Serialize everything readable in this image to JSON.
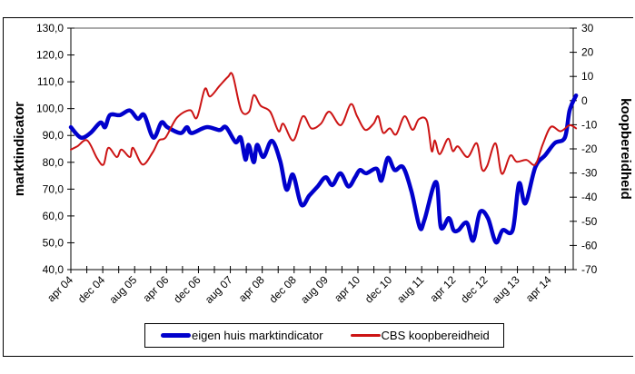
{
  "chart_data": {
    "type": "line",
    "title": "",
    "x_unit": "months since apr 2004",
    "x_range_months": [
      0,
      126
    ],
    "xtick_labels": [
      "apr 04",
      "dec 04",
      "aug 05",
      "apr 06",
      "dec 06",
      "aug 07",
      "apr 08",
      "dec 08",
      "aug 09",
      "apr 10",
      "dec 10",
      "aug 11",
      "apr 12",
      "dec 12",
      "aug 13",
      "apr 14"
    ],
    "xtick_label_months": [
      0,
      8,
      16,
      24,
      32,
      40,
      48,
      56,
      64,
      72,
      80,
      88,
      96,
      104,
      112,
      120
    ],
    "minor_tick_interval_months": 4,
    "y_left": {
      "label": "marktindicator",
      "range": [
        40,
        130
      ],
      "ticks": [
        "40,0",
        "50,0",
        "60,0",
        "70,0",
        "80,0",
        "90,0",
        "100,0",
        "110,0",
        "120,0",
        "130,0"
      ],
      "tick_values": [
        40,
        50,
        60,
        70,
        80,
        90,
        100,
        110,
        120,
        130
      ]
    },
    "y_right": {
      "label": "koopbereidheid",
      "range": [
        -70,
        30
      ],
      "ticks": [
        "-70",
        "-60",
        "-50",
        "-40",
        "-30",
        "-20",
        "-10",
        "0",
        "10",
        "20",
        "30"
      ],
      "tick_values": [
        -70,
        -60,
        -50,
        -40,
        -30,
        -20,
        -10,
        0,
        10,
        20,
        30
      ]
    },
    "grid": false,
    "legend_position": "bottom",
    "series": [
      {
        "name": "eigen huis marktindicator",
        "axis": "left",
        "color": "#0000cc",
        "x": [
          0,
          2.5,
          4.9,
          7.4,
          8.6,
          9.8,
          12.3,
          14.8,
          16.8,
          18.4,
          20.7,
          22.7,
          24.2,
          27.5,
          29.1,
          30.3,
          34,
          37.3,
          38.9,
          41.3,
          42.6,
          43.8,
          44.6,
          45.9,
          46.7,
          48.3,
          50.4,
          52.5,
          54.1,
          55.7,
          57.8,
          59.8,
          61.9,
          63.9,
          65.6,
          67.6,
          69.6,
          71.3,
          72.5,
          74.1,
          76.7,
          77.9,
          79.5,
          81.2,
          83.3,
          85.4,
          87.5,
          88.7,
          91.6,
          92.8,
          94.8,
          96,
          97.2,
          99.3,
          100.9,
          102.6,
          104.6,
          106.6,
          108.3,
          110.8,
          112.4,
          114,
          116.5,
          119,
          121.4,
          123.9,
          125.1,
          126.7
        ],
        "values": [
          93.1,
          89.2,
          90.9,
          94.8,
          93.1,
          97.6,
          97.6,
          99.3,
          96.2,
          97.6,
          89.2,
          94.8,
          93.1,
          90.9,
          93.1,
          90.9,
          93.1,
          92,
          93.1,
          87.5,
          89.2,
          81,
          86.5,
          80,
          86.5,
          82,
          88,
          80.5,
          69.8,
          75.4,
          64.2,
          67.6,
          71,
          74.4,
          71.5,
          75.9,
          71,
          74.4,
          77.1,
          75.9,
          77.6,
          73.2,
          81.6,
          77.1,
          78.2,
          69.3,
          55.8,
          58.6,
          72.7,
          55.8,
          59.2,
          54.7,
          54.7,
          57.5,
          50.8,
          61.4,
          59.2,
          50.2,
          54.7,
          54.7,
          72.1,
          64.7,
          78.2,
          82.7,
          87.2,
          89.2,
          99.3,
          104.9
        ]
      },
      {
        "name": "CBS koopbereidheid",
        "axis": "right",
        "color": "#cc1414",
        "x": [
          0,
          1.6,
          4.1,
          6.6,
          8.2,
          9.4,
          11.5,
          12.7,
          14.8,
          15.6,
          18,
          20.5,
          22.1,
          23.8,
          26.6,
          29.9,
          31.6,
          33.6,
          34.9,
          37.3,
          39.4,
          40.6,
          42.7,
          44.7,
          45.9,
          47.6,
          50,
          52.1,
          53.3,
          55.8,
          58.2,
          60.3,
          62.7,
          64.8,
          67.7,
          70.2,
          71.8,
          73.8,
          75.9,
          77.1,
          78.3,
          80,
          81.6,
          83.7,
          85.7,
          87.3,
          89.3,
          90.5,
          91.3,
          92.5,
          94.6,
          95.8,
          97.1,
          99.5,
          101.8,
          103.1,
          104.4,
          106.5,
          108.1,
          110.2,
          111.8,
          114.3,
          116.5,
          118.3,
          120.4,
          122.8,
          125.1,
          126.7
        ],
        "values": [
          -20.3,
          -19,
          -16.5,
          -24,
          -26.5,
          -19.6,
          -23.4,
          -20.3,
          -23.4,
          -19.6,
          -26.5,
          -21.5,
          -16.5,
          -15.2,
          -7.1,
          -4,
          -7.1,
          4.8,
          1.7,
          6.1,
          9.8,
          10.5,
          -4,
          -4.6,
          2.3,
          -2.1,
          -4.6,
          -12.7,
          -9.6,
          -16.5,
          -6.5,
          -11.5,
          -9.6,
          -4.6,
          -10.2,
          -1.5,
          -6.5,
          -12.1,
          -9.6,
          -6.5,
          -13.3,
          -11.5,
          -14,
          -6.5,
          -12.1,
          -7.7,
          -8.4,
          -20.9,
          -16.5,
          -22.2,
          -15.8,
          -20.9,
          -19,
          -23.4,
          -17.7,
          -28.4,
          -27.1,
          -17.7,
          -30.3,
          -22.8,
          -25.3,
          -24.6,
          -26.5,
          -18.4,
          -10.9,
          -12.7,
          -10.2,
          -11.5
        ]
      }
    ]
  },
  "legend": {
    "items": [
      {
        "label": "eigen huis marktindicator",
        "color": "#0000cc"
      },
      {
        "label": "CBS koopbereidheid",
        "color": "#cc1414"
      }
    ]
  }
}
